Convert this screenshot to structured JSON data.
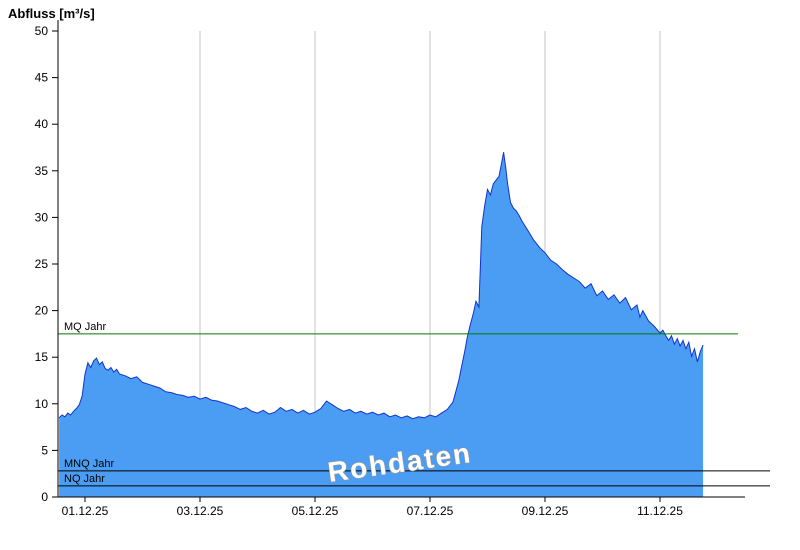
{
  "watermark": "Rohdaten",
  "colors": {
    "fill": "#4a9df2",
    "line": "#1133cc",
    "grid": "#c6c6c6",
    "axis": "#000000",
    "mq_green": "#007a00",
    "ref_black": "#000000",
    "text": "#000000",
    "watermark_fill": "#ffffff",
    "watermark_outline": "#999999"
  },
  "chart_data": {
    "type": "area",
    "title": "Abfluss [m³/s]",
    "ylabel": "Abfluss [m³/s]",
    "xlabel": "",
    "ylim": [
      0,
      50
    ],
    "ytick_step": 5,
    "yticks": [
      0,
      5,
      10,
      15,
      20,
      25,
      30,
      35,
      40,
      45,
      50
    ],
    "x_tick_labels": [
      "01.12.25",
      "03.12.25",
      "05.12.25",
      "07.12.25",
      "09.12.25",
      "11.12.25"
    ],
    "x_tick_days": [
      0,
      2,
      4,
      6,
      8,
      10
    ],
    "xlim_days": [
      -0.47,
      11.36
    ],
    "grid": "vertical-only",
    "legend": "none",
    "reference_lines": [
      {
        "label": "MQ Jahr",
        "value": 17.5,
        "color": "#007a00"
      },
      {
        "label": "MNQ Jahr",
        "value": 2.8,
        "color": "#000000"
      },
      {
        "label": "NQ Jahr",
        "value": 1.2,
        "color": "#000000"
      }
    ],
    "series": [
      {
        "name": "Rohdaten",
        "unit": "m³/s",
        "x_unit": "days_since_01.12.25",
        "points": [
          [
            -0.45,
            8.5
          ],
          [
            -0.4,
            8.8
          ],
          [
            -0.35,
            8.6
          ],
          [
            -0.3,
            9.0
          ],
          [
            -0.25,
            8.8
          ],
          [
            -0.2,
            9.2
          ],
          [
            -0.15,
            9.5
          ],
          [
            -0.1,
            9.9
          ],
          [
            -0.05,
            10.8
          ],
          [
            0.0,
            13.2
          ],
          [
            0.05,
            14.4
          ],
          [
            0.1,
            13.9
          ],
          [
            0.15,
            14.6
          ],
          [
            0.2,
            14.9
          ],
          [
            0.25,
            14.2
          ],
          [
            0.3,
            14.5
          ],
          [
            0.35,
            13.8
          ],
          [
            0.4,
            13.6
          ],
          [
            0.45,
            13.9
          ],
          [
            0.5,
            13.4
          ],
          [
            0.55,
            13.7
          ],
          [
            0.6,
            13.2
          ],
          [
            0.7,
            13.0
          ],
          [
            0.8,
            12.7
          ],
          [
            0.9,
            12.9
          ],
          [
            1.0,
            12.3
          ],
          [
            1.1,
            12.1
          ],
          [
            1.2,
            11.9
          ],
          [
            1.3,
            11.7
          ],
          [
            1.4,
            11.3
          ],
          [
            1.5,
            11.2
          ],
          [
            1.6,
            11.0
          ],
          [
            1.7,
            10.9
          ],
          [
            1.8,
            10.7
          ],
          [
            1.9,
            10.8
          ],
          [
            2.0,
            10.5
          ],
          [
            2.1,
            10.7
          ],
          [
            2.2,
            10.4
          ],
          [
            2.3,
            10.3
          ],
          [
            2.4,
            10.1
          ],
          [
            2.5,
            9.9
          ],
          [
            2.6,
            9.7
          ],
          [
            2.7,
            9.4
          ],
          [
            2.8,
            9.6
          ],
          [
            2.9,
            9.2
          ],
          [
            3.0,
            9.0
          ],
          [
            3.1,
            9.3
          ],
          [
            3.2,
            8.9
          ],
          [
            3.3,
            9.1
          ],
          [
            3.4,
            9.6
          ],
          [
            3.5,
            9.2
          ],
          [
            3.6,
            9.4
          ],
          [
            3.7,
            9.0
          ],
          [
            3.8,
            9.3
          ],
          [
            3.9,
            8.9
          ],
          [
            4.0,
            9.1
          ],
          [
            4.1,
            9.5
          ],
          [
            4.2,
            10.3
          ],
          [
            4.3,
            9.9
          ],
          [
            4.4,
            9.5
          ],
          [
            4.5,
            9.2
          ],
          [
            4.6,
            9.4
          ],
          [
            4.7,
            9.0
          ],
          [
            4.8,
            9.2
          ],
          [
            4.9,
            8.9
          ],
          [
            5.0,
            9.1
          ],
          [
            5.1,
            8.8
          ],
          [
            5.2,
            9.0
          ],
          [
            5.3,
            8.6
          ],
          [
            5.4,
            8.8
          ],
          [
            5.5,
            8.5
          ],
          [
            5.6,
            8.7
          ],
          [
            5.7,
            8.4
          ],
          [
            5.8,
            8.6
          ],
          [
            5.9,
            8.5
          ],
          [
            6.0,
            8.8
          ],
          [
            6.1,
            8.6
          ],
          [
            6.2,
            9.0
          ],
          [
            6.3,
            9.4
          ],
          [
            6.4,
            10.2
          ],
          [
            6.5,
            12.5
          ],
          [
            6.55,
            14.0
          ],
          [
            6.6,
            15.5
          ],
          [
            6.65,
            17.2
          ],
          [
            6.7,
            18.5
          ],
          [
            6.75,
            19.6
          ],
          [
            6.8,
            21.0
          ],
          [
            6.85,
            20.4
          ],
          [
            6.9,
            29.0
          ],
          [
            6.95,
            31.2
          ],
          [
            7.0,
            33.0
          ],
          [
            7.05,
            32.4
          ],
          [
            7.1,
            33.6
          ],
          [
            7.15,
            34.0
          ],
          [
            7.2,
            34.4
          ],
          [
            7.25,
            36.0
          ],
          [
            7.28,
            37.0
          ],
          [
            7.32,
            35.2
          ],
          [
            7.35,
            33.6
          ],
          [
            7.4,
            31.6
          ],
          [
            7.45,
            31.0
          ],
          [
            7.5,
            30.7
          ],
          [
            7.55,
            30.2
          ],
          [
            7.6,
            29.6
          ],
          [
            7.7,
            28.6
          ],
          [
            7.8,
            27.6
          ],
          [
            7.9,
            26.8
          ],
          [
            8.0,
            26.2
          ],
          [
            8.1,
            25.4
          ],
          [
            8.2,
            25.0
          ],
          [
            8.3,
            24.4
          ],
          [
            8.4,
            23.9
          ],
          [
            8.5,
            23.5
          ],
          [
            8.6,
            23.1
          ],
          [
            8.7,
            22.4
          ],
          [
            8.8,
            22.9
          ],
          [
            8.9,
            21.6
          ],
          [
            9.0,
            22.1
          ],
          [
            9.1,
            21.2
          ],
          [
            9.2,
            21.7
          ],
          [
            9.3,
            20.8
          ],
          [
            9.4,
            21.4
          ],
          [
            9.5,
            20.1
          ],
          [
            9.6,
            20.6
          ],
          [
            9.65,
            19.3
          ],
          [
            9.7,
            20.0
          ],
          [
            9.8,
            18.9
          ],
          [
            9.9,
            18.3
          ],
          [
            10.0,
            17.6
          ],
          [
            10.05,
            17.9
          ],
          [
            10.1,
            17.3
          ],
          [
            10.15,
            16.8
          ],
          [
            10.2,
            17.3
          ],
          [
            10.25,
            16.4
          ],
          [
            10.3,
            17.0
          ],
          [
            10.35,
            16.2
          ],
          [
            10.4,
            16.8
          ],
          [
            10.45,
            15.9
          ],
          [
            10.5,
            16.6
          ],
          [
            10.55,
            15.1
          ],
          [
            10.6,
            15.9
          ],
          [
            10.65,
            14.5
          ],
          [
            10.7,
            15.6
          ],
          [
            10.75,
            16.3
          ]
        ]
      }
    ]
  }
}
